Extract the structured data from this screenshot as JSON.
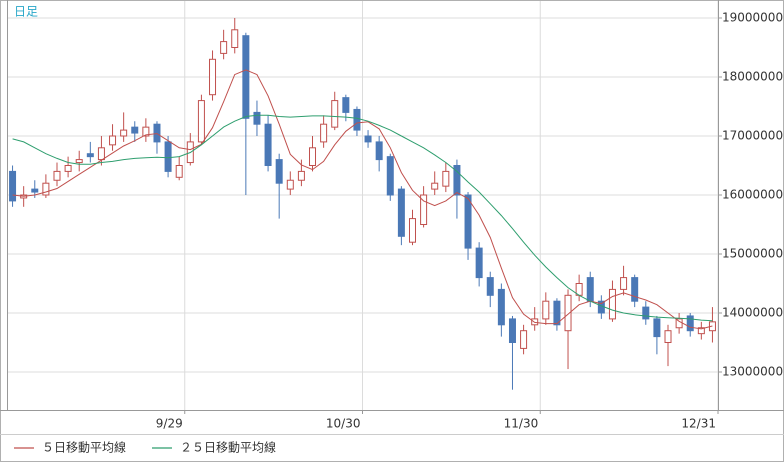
{
  "chart_data": {
    "type": "candlestick",
    "title": "日足",
    "up_color": "#c0504d",
    "down_color": "#4a78b6",
    "open": [
      16400000,
      15950000,
      16100000,
      16000000,
      16250000,
      16400000,
      16550000,
      16700000,
      16600000,
      16850000,
      17000000,
      17150000,
      17000000,
      17200000,
      16900000,
      16300000,
      16550000,
      16900000,
      17700000,
      18400000,
      18500000,
      18700000,
      17400000,
      17200000,
      16600000,
      16100000,
      16250000,
      16500000,
      16900000,
      17150000,
      17650000,
      17450000,
      17000000,
      16900000,
      16650000,
      16100000,
      15200000,
      15500000,
      16100000,
      16150000,
      16500000,
      16000000,
      15100000,
      14600000,
      14400000,
      13900000,
      13400000,
      13800000,
      13900000,
      14200000,
      13700000,
      14300000,
      14600000,
      14200000,
      13900000,
      14400000,
      14600000,
      14100000,
      13900000,
      13500000,
      13750000,
      13950000,
      13650000,
      13700000
    ],
    "high": [
      16500000,
      16150000,
      16250000,
      16350000,
      16550000,
      16650000,
      16750000,
      16900000,
      17000000,
      17200000,
      17400000,
      17250000,
      17300000,
      17250000,
      17000000,
      16650000,
      17050000,
      17700000,
      18450000,
      18800000,
      19000000,
      18750000,
      17600000,
      17350000,
      16700000,
      16400000,
      16600000,
      17000000,
      17350000,
      17750000,
      17700000,
      17500000,
      17100000,
      17000000,
      16700000,
      16150000,
      15750000,
      16150000,
      16400000,
      16550000,
      16600000,
      16050000,
      15200000,
      14700000,
      14500000,
      13950000,
      13800000,
      14100000,
      14350000,
      14250000,
      14400000,
      14650000,
      14700000,
      14300000,
      14550000,
      14800000,
      14650000,
      14200000,
      13950000,
      13800000,
      14000000,
      14000000,
      13850000,
      14100000
    ],
    "low": [
      15800000,
      15800000,
      15950000,
      15950000,
      16150000,
      16300000,
      16400000,
      16550000,
      16500000,
      16750000,
      16900000,
      16900000,
      16900000,
      16700000,
      16300000,
      16250000,
      16500000,
      16850000,
      17600000,
      18300000,
      18400000,
      16000000,
      17000000,
      16400000,
      15600000,
      16000000,
      16150000,
      16400000,
      16800000,
      17100000,
      17250000,
      17000000,
      16800000,
      16400000,
      15900000,
      15150000,
      15150000,
      15450000,
      16000000,
      16050000,
      15600000,
      14900000,
      14450000,
      14100000,
      13600000,
      12700000,
      13300000,
      13700000,
      13800000,
      13700000,
      13050000,
      14200000,
      14100000,
      13900000,
      13850000,
      14300000,
      14100000,
      13800000,
      13300000,
      13100000,
      13650000,
      13600000,
      13550000,
      13500000
    ],
    "close": [
      15900000,
      16000000,
      16050000,
      16200000,
      16400000,
      16500000,
      16600000,
      16650000,
      16800000,
      17000000,
      17100000,
      17050000,
      17150000,
      16900000,
      16400000,
      16500000,
      16900000,
      17600000,
      18300000,
      18600000,
      18800000,
      17300000,
      17200000,
      16500000,
      16200000,
      16250000,
      16400000,
      16800000,
      17200000,
      17600000,
      17400000,
      17100000,
      16900000,
      16600000,
      16000000,
      15300000,
      15600000,
      16000000,
      16200000,
      16400000,
      16000000,
      15100000,
      14600000,
      14300000,
      13800000,
      13500000,
      13700000,
      13900000,
      14200000,
      13800000,
      14300000,
      14500000,
      14200000,
      14000000,
      14400000,
      14600000,
      14200000,
      13900000,
      13600000,
      13700000,
      13900000,
      13700000,
      13750000,
      13850000
    ],
    "series": [
      {
        "name": "５日移動平均線",
        "color": "#c0504d",
        "values": [
          16000000,
          15980000,
          16000000,
          16050000,
          16110000,
          16230000,
          16350000,
          16470000,
          16590000,
          16710000,
          16830000,
          16920000,
          17020000,
          17040000,
          16920000,
          16800000,
          16770000,
          16860000,
          17140000,
          17580000,
          18040000,
          18120000,
          18040000,
          17680000,
          17200000,
          16690000,
          16510000,
          16430000,
          16570000,
          16850000,
          17080000,
          17220000,
          17240000,
          17120000,
          16800000,
          16380000,
          16080000,
          15900000,
          15820000,
          15900000,
          16040000,
          15940000,
          15660000,
          15280000,
          14760000,
          14260000,
          13980000,
          13840000,
          13820000,
          13820000,
          13980000,
          14140000,
          14200000,
          14160000,
          14280000,
          14340000,
          14280000,
          14220000,
          14140000,
          14000000,
          13860000,
          13760000,
          13730000,
          13780000
        ]
      },
      {
        "name": "２５日移動平均線",
        "color": "#2e9e6e",
        "values": [
          16950000,
          16900000,
          16800000,
          16700000,
          16620000,
          16550000,
          16520000,
          16520000,
          16550000,
          16570000,
          16600000,
          16620000,
          16630000,
          16640000,
          16630000,
          16650000,
          16720000,
          16850000,
          17000000,
          17150000,
          17250000,
          17330000,
          17350000,
          17350000,
          17330000,
          17320000,
          17330000,
          17340000,
          17340000,
          17330000,
          17320000,
          17300000,
          17250000,
          17180000,
          17100000,
          17000000,
          16900000,
          16800000,
          16680000,
          16550000,
          16400000,
          16220000,
          16050000,
          15850000,
          15650000,
          15430000,
          15200000,
          14980000,
          14780000,
          14600000,
          14430000,
          14300000,
          14200000,
          14120000,
          14050000,
          14000000,
          13970000,
          13950000,
          13930000,
          13920000,
          13910000,
          13900000,
          13880000,
          13870000
        ]
      }
    ],
    "xlim": [
      -0.5,
      63.5
    ],
    "xticks": [
      {
        "value": 15.5,
        "label": "9/29"
      },
      {
        "value": 31.5,
        "label": "10/30"
      },
      {
        "value": 47.5,
        "label": "11/30"
      },
      {
        "value": 63.5,
        "label": "12/31"
      }
    ],
    "ylim": [
      12356000,
      19305000
    ],
    "yticks": [
      13000000,
      14000000,
      15000000,
      16000000,
      17000000,
      18000000,
      19000000
    ],
    "grid": true
  }
}
